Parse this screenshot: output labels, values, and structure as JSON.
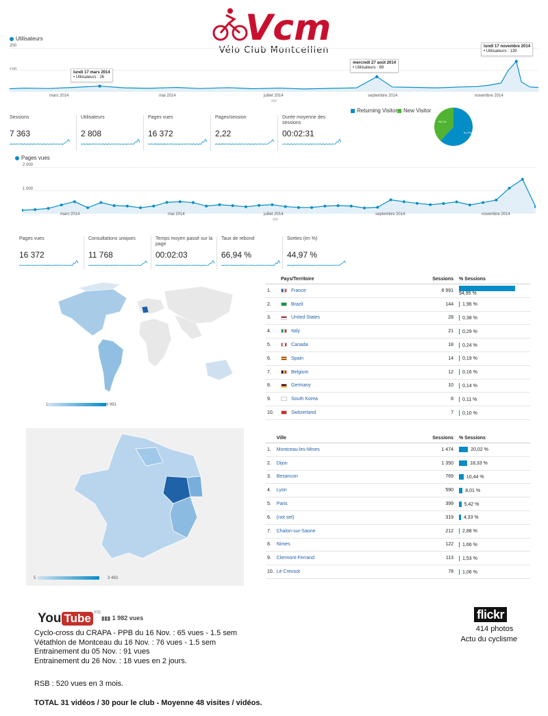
{
  "header": {
    "brand": "Vcm",
    "subtitle": "Vélo Club Montcellien"
  },
  "colors": {
    "accent": "#058dc7",
    "area": "#e3eff8",
    "logo_red": "#c8102e",
    "new_visitor": "#50b432"
  },
  "chart1": {
    "legend": "Utilisateurs",
    "y_ticks": [
      "200",
      "100"
    ],
    "x_ticks": [
      "mars 2014",
      "mai 2014",
      "juillet 2014",
      "septembre 2014",
      "novembre 2014"
    ],
    "annotations": [
      {
        "title": "lundi 17 mars 2014",
        "text": "Utilisateurs : 26"
      },
      {
        "title": "mercredi 27 août 2014",
        "text": "Utilisateurs : 69"
      },
      {
        "title": "lundi 17 novembre 2014",
        "text": "Utilisateurs : 139"
      }
    ]
  },
  "chart_data": [
    {
      "type": "line",
      "legend": "Utilisateurs",
      "ylim": [
        0,
        200
      ],
      "x": [
        "2014-01-23",
        "2014-02-01",
        "2014-02-15",
        "2014-03-01",
        "2014-03-17",
        "2014-04-01",
        "2014-04-15",
        "2014-05-01",
        "2014-05-15",
        "2014-06-01",
        "2014-06-15",
        "2014-07-01",
        "2014-07-15",
        "2014-08-01",
        "2014-08-15",
        "2014-08-27",
        "2014-09-05",
        "2014-09-20",
        "2014-10-01",
        "2014-10-15",
        "2014-10-25",
        "2014-11-01",
        "2014-11-08",
        "2014-11-12",
        "2014-11-17",
        "2014-11-20",
        "2014-11-25",
        "2014-11-30"
      ],
      "values": [
        14,
        17,
        15,
        20,
        26,
        18,
        16,
        20,
        15,
        19,
        14,
        17,
        13,
        16,
        18,
        69,
        22,
        20,
        18,
        22,
        24,
        30,
        40,
        95,
        139,
        45,
        22,
        20
      ]
    },
    {
      "type": "line",
      "legend": "Pages vues",
      "ylim": [
        0,
        2000
      ],
      "x": [
        "jan",
        "fév",
        "fév",
        "fév",
        "mar",
        "mar",
        "mar",
        "mar",
        "avr",
        "avr",
        "avr",
        "avr",
        "mai",
        "mai",
        "mai",
        "mai",
        "juin",
        "juin",
        "juin",
        "juin",
        "juil",
        "juil",
        "juil",
        "juil",
        "août",
        "août",
        "août",
        "août",
        "sept",
        "sept",
        "sept",
        "sept",
        "oct",
        "oct",
        "oct",
        "oct",
        "nov",
        "nov",
        "nov",
        "nov"
      ],
      "values": [
        150,
        180,
        230,
        380,
        520,
        260,
        480,
        350,
        330,
        260,
        330,
        490,
        520,
        480,
        330,
        390,
        350,
        300,
        360,
        390,
        310,
        270,
        270,
        330,
        350,
        330,
        250,
        280,
        600,
        520,
        450,
        390,
        440,
        510,
        380,
        480,
        590,
        1100,
        1480,
        300
      ]
    },
    {
      "type": "pie",
      "legend": [
        "Returning Visitor",
        "New Visitor"
      ],
      "values": [
        61.9,
        38.1
      ],
      "labels": [
        "61,9%",
        "38,1%"
      ]
    },
    {
      "type": "table",
      "columns": [
        "Pays/Territoire",
        "Sessions",
        "% Sessions"
      ],
      "rows": [
        [
          "France",
          6991,
          "94,95 %"
        ],
        [
          "Brazil",
          144,
          "1,96 %"
        ],
        [
          "United States",
          28,
          "0,38 %"
        ],
        [
          "Italy",
          21,
          "0,29 %"
        ],
        [
          "Canada",
          18,
          "0,24 %"
        ],
        [
          "Spain",
          14,
          "0,19 %"
        ],
        [
          "Belgium",
          12,
          "0,16 %"
        ],
        [
          "Germany",
          10,
          "0,14 %"
        ],
        [
          "South Korea",
          8,
          "0,11 %"
        ],
        [
          "Switzerland",
          7,
          "0,10 %"
        ]
      ]
    },
    {
      "type": "table",
      "columns": [
        "Ville",
        "Sessions",
        "% Sessions"
      ],
      "rows": [
        [
          "Montceau-les-Mines",
          1474,
          "20,02 %"
        ],
        [
          "Dijon",
          1350,
          "18,33 %"
        ],
        [
          "Besancon",
          769,
          "10,44 %"
        ],
        [
          "Lyon",
          590,
          "8,01 %"
        ],
        [
          "Paris",
          399,
          "5,42 %"
        ],
        [
          "(not set)",
          319,
          "4,33 %"
        ],
        [
          "Chalon-sur-Saone",
          212,
          "2,88 %"
        ],
        [
          "Nimes",
          122,
          "1,66 %"
        ],
        [
          "Clermont-Ferrand",
          113,
          "1,53 %"
        ],
        [
          "Le Creusot",
          78,
          "1,06 %"
        ]
      ]
    }
  ],
  "metrics1": [
    {
      "label": "Sessions",
      "value": "7 363"
    },
    {
      "label": "Utilisateurs",
      "value": "2 808"
    },
    {
      "label": "Pages vues",
      "value": "16 372"
    },
    {
      "label": "Pages/session",
      "value": "2,22"
    },
    {
      "label": "Durée moyenne des sessions",
      "value": "00:02:31"
    }
  ],
  "pie": {
    "legend_returning": "Returning Visitor",
    "legend_new": "New Visitor",
    "label_returning": "61,9%",
    "label_new": "38,1%"
  },
  "chart2": {
    "legend": "Pages vues",
    "y_ticks": [
      "2 000",
      "1 000"
    ],
    "x_ticks": [
      "mars 2014",
      "mai 2014",
      "juillet 2014",
      "septembre 2014",
      "novembre 2014"
    ]
  },
  "metrics2": [
    {
      "label": "Pages vues",
      "value": "16 372"
    },
    {
      "label": "Consultations uniques",
      "value": "11 768"
    },
    {
      "label": "Temps moyen passé sur la page",
      "value": "00:02:03"
    },
    {
      "label": "Taux de rebond",
      "value": "66,94 %"
    },
    {
      "label": "Sorties (en %)",
      "value": "44,97 %"
    }
  ],
  "world_map": {
    "scale_min": "1",
    "scale_max": "6 991"
  },
  "france_map": {
    "scale_min": "5",
    "scale_max": "3 463"
  },
  "country_table": {
    "h_country": "Pays/Territoire",
    "h_sessions": "Sessions",
    "h_pct": "% Sessions",
    "rows": [
      {
        "n": "1.",
        "name": "France",
        "sessions": "6 991",
        "pct": "94,95 %",
        "f": 94.95,
        "flag": "fr"
      },
      {
        "n": "2.",
        "name": "Brazil",
        "sessions": "144",
        "pct": "1,96 %",
        "f": 1.96,
        "flag": "br"
      },
      {
        "n": "3.",
        "name": "United States",
        "sessions": "28",
        "pct": "0,38 %",
        "f": 0.38,
        "flag": "us"
      },
      {
        "n": "4.",
        "name": "Italy",
        "sessions": "21",
        "pct": "0,29 %",
        "f": 0.29,
        "flag": "it"
      },
      {
        "n": "5.",
        "name": "Canada",
        "sessions": "18",
        "pct": "0,24 %",
        "f": 0.24,
        "flag": "ca"
      },
      {
        "n": "6.",
        "name": "Spain",
        "sessions": "14",
        "pct": "0,19 %",
        "f": 0.19,
        "flag": "es"
      },
      {
        "n": "7.",
        "name": "Belgium",
        "sessions": "12",
        "pct": "0,16 %",
        "f": 0.16,
        "flag": "be"
      },
      {
        "n": "8.",
        "name": "Germany",
        "sessions": "10",
        "pct": "0,14 %",
        "f": 0.14,
        "flag": "de"
      },
      {
        "n": "9.",
        "name": "South Korea",
        "sessions": "8",
        "pct": "0,11 %",
        "f": 0.11,
        "flag": "kr"
      },
      {
        "n": "10.",
        "name": "Switzerland",
        "sessions": "7",
        "pct": "0,10 %",
        "f": 0.1,
        "flag": "ch"
      }
    ]
  },
  "city_table": {
    "h_city": "Ville",
    "h_sessions": "Sessions",
    "h_pct": "% Sessions",
    "rows": [
      {
        "n": "1.",
        "name": "Montceau-les-Mines",
        "sessions": "1 474",
        "pct": "20,02 %",
        "f": 20.02
      },
      {
        "n": "2.",
        "name": "Dijon",
        "sessions": "1 350",
        "pct": "18,33 %",
        "f": 18.33
      },
      {
        "n": "3.",
        "name": "Besancon",
        "sessions": "769",
        "pct": "10,44 %",
        "f": 10.44
      },
      {
        "n": "4.",
        "name": "Lyon",
        "sessions": "590",
        "pct": "8,01 %",
        "f": 8.01
      },
      {
        "n": "5.",
        "name": "Paris",
        "sessions": "399",
        "pct": "5,42 %",
        "f": 5.42
      },
      {
        "n": "6.",
        "name": "(not set)",
        "sessions": "319",
        "pct": "4,33 %",
        "f": 4.33
      },
      {
        "n": "7.",
        "name": "Chalon-sur-Saone",
        "sessions": "212",
        "pct": "2,88 %",
        "f": 2.88
      },
      {
        "n": "8.",
        "name": "Nimes",
        "sessions": "122",
        "pct": "1,66 %",
        "f": 1.66
      },
      {
        "n": "9.",
        "name": "Clermont-Ferrand",
        "sessions": "113",
        "pct": "1,53 %",
        "f": 1.53
      },
      {
        "n": "10.",
        "name": "Le Creusot",
        "sessions": "78",
        "pct": "1,06 %",
        "f": 1.06
      }
    ]
  },
  "youtube": {
    "logo_you": "You",
    "logo_tube": "Tube",
    "logo_fr": "FR",
    "views": "1 982 vues",
    "lines": [
      "Cyclo-cross du CRAPA - PPB du 16 Nov. : 65 vues - 1.5 sem",
      "Vétathlon de Montceau du 16 Nov. : 76 vues - 1.5  sem",
      "Entrainement du 05 Nov. : 91 vues",
      "Entrainement du 26 Nov. : 18 vues en 2 jours."
    ],
    "rsb": "RSB : 520 vues en 3 mois.",
    "total": "TOTAL 31 vidéos / 30 pour le club - Moyenne 48 visites / vidéos."
  },
  "flickr": {
    "logo": "flickr",
    "photos": "414 photos",
    "caption": "Actu du cyclisme"
  }
}
